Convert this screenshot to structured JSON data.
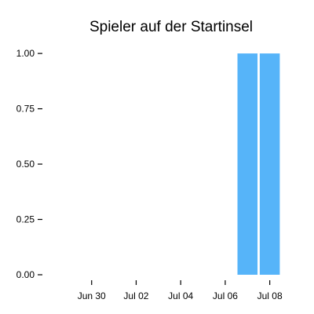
{
  "chart_data": {
    "type": "bar",
    "title": "Spieler auf der Startinsel",
    "xlabel": "",
    "ylabel": "",
    "x_axis": {
      "type": "date",
      "range": [
        "2015-06-28",
        "2015-07-09"
      ],
      "ticks": [
        {
          "date": "2015-06-30",
          "label": "Jun 30"
        },
        {
          "date": "2015-07-02",
          "label": "Jul 02"
        },
        {
          "date": "2015-07-04",
          "label": "Jul 04"
        },
        {
          "date": "2015-07-06",
          "label": "Jul 06"
        },
        {
          "date": "2015-07-08",
          "label": "Jul 08"
        }
      ]
    },
    "y_axis": {
      "range": [
        0,
        1.05
      ],
      "ticks": [
        {
          "value": 0.0,
          "label": "0.00"
        },
        {
          "value": 0.25,
          "label": "0.25"
        },
        {
          "value": 0.5,
          "label": "0.50"
        },
        {
          "value": 0.75,
          "label": "0.75"
        },
        {
          "value": 1.0,
          "label": "1.00"
        }
      ]
    },
    "bars": [
      {
        "x": "2015-07-07",
        "value": 1.0
      },
      {
        "x": "2015-07-08",
        "value": 1.0
      }
    ],
    "bar_color": "#56b4f9",
    "grid": false,
    "legend": "none"
  }
}
